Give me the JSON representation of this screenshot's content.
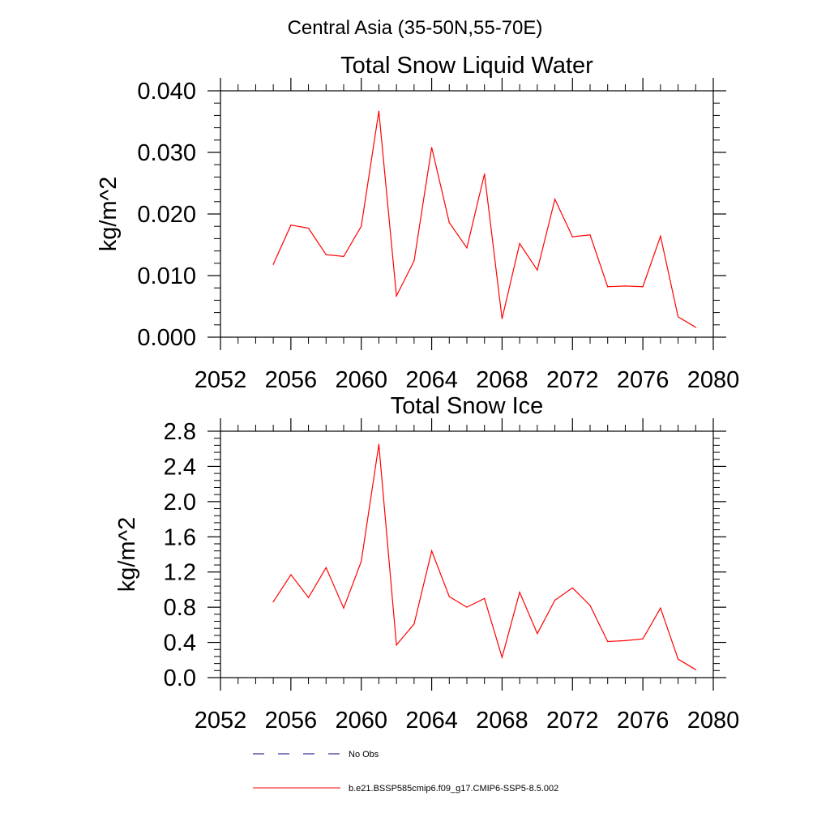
{
  "page_title": "Central Asia (35-50N,55-70E)",
  "chart_data": [
    {
      "type": "line",
      "title": "Total Snow Liquid Water",
      "ylabel": "kg/m^2",
      "xlabel": "",
      "xlim": [
        2052,
        2080
      ],
      "ylim": [
        0.0,
        0.04
      ],
      "x_ticks": [
        2052,
        2056,
        2060,
        2064,
        2068,
        2072,
        2076,
        2080
      ],
      "x_tick_labels": [
        "2052",
        "2056",
        "2060",
        "2064",
        "2068",
        "2072",
        "2076",
        "2080"
      ],
      "y_ticks": [
        0.0,
        0.01,
        0.02,
        0.03,
        0.04
      ],
      "y_tick_labels": [
        "0.000",
        "0.010",
        "0.020",
        "0.030",
        "0.040"
      ],
      "grid": false,
      "series": [
        {
          "name": "b.e21.BSSP585cmip6.f09_g17.CMIP6-SSP5-8.5.002",
          "color": "#ff0000",
          "x": [
            2055,
            2056,
            2057,
            2058,
            2059,
            2060,
            2061,
            2062,
            2063,
            2064,
            2065,
            2066,
            2067,
            2068,
            2069,
            2070,
            2071,
            2072,
            2073,
            2074,
            2075,
            2076,
            2077,
            2078,
            2079
          ],
          "values": [
            0.0118,
            0.0182,
            0.0177,
            0.0134,
            0.0131,
            0.018,
            0.0367,
            0.0067,
            0.0124,
            0.0308,
            0.0186,
            0.0145,
            0.0265,
            0.003,
            0.0152,
            0.0109,
            0.0224,
            0.0163,
            0.0166,
            0.0082,
            0.0083,
            0.0082,
            0.0164,
            0.0033,
            0.0016
          ]
        }
      ]
    },
    {
      "type": "line",
      "title": "Total Snow Ice",
      "ylabel": "kg/m^2",
      "xlabel": "",
      "xlim": [
        2052,
        2080
      ],
      "ylim": [
        0.0,
        2.8
      ],
      "x_ticks": [
        2052,
        2056,
        2060,
        2064,
        2068,
        2072,
        2076,
        2080
      ],
      "x_tick_labels": [
        "2052",
        "2056",
        "2060",
        "2064",
        "2068",
        "2072",
        "2076",
        "2080"
      ],
      "y_ticks": [
        0.0,
        0.4,
        0.8,
        1.2,
        1.6,
        2.0,
        2.4,
        2.8
      ],
      "y_tick_labels": [
        "0.0",
        "0.4",
        "0.8",
        "1.2",
        "1.6",
        "2.0",
        "2.4",
        "2.8"
      ],
      "grid": false,
      "series": [
        {
          "name": "b.e21.BSSP585cmip6.f09_g17.CMIP6-SSP5-8.5.002",
          "color": "#ff0000",
          "x": [
            2055,
            2056,
            2057,
            2058,
            2059,
            2060,
            2061,
            2062,
            2063,
            2064,
            2065,
            2066,
            2067,
            2068,
            2069,
            2070,
            2071,
            2072,
            2073,
            2074,
            2075,
            2076,
            2077,
            2078,
            2079
          ],
          "values": [
            0.86,
            1.17,
            0.91,
            1.25,
            0.79,
            1.32,
            2.65,
            0.37,
            0.61,
            1.44,
            0.92,
            0.8,
            0.9,
            0.23,
            0.97,
            0.5,
            0.88,
            1.02,
            0.82,
            0.41,
            0.42,
            0.44,
            0.79,
            0.21,
            0.09
          ]
        }
      ]
    }
  ],
  "legend": {
    "placement": "bottom",
    "entries": [
      {
        "label": "No Obs",
        "style": "dashed",
        "color": "#000080"
      },
      {
        "label": "b.e21.BSSP585cmip6.f09_g17.CMIP6-SSP5-8.5.002",
        "style": "solid",
        "color": "#ff0000"
      }
    ]
  }
}
